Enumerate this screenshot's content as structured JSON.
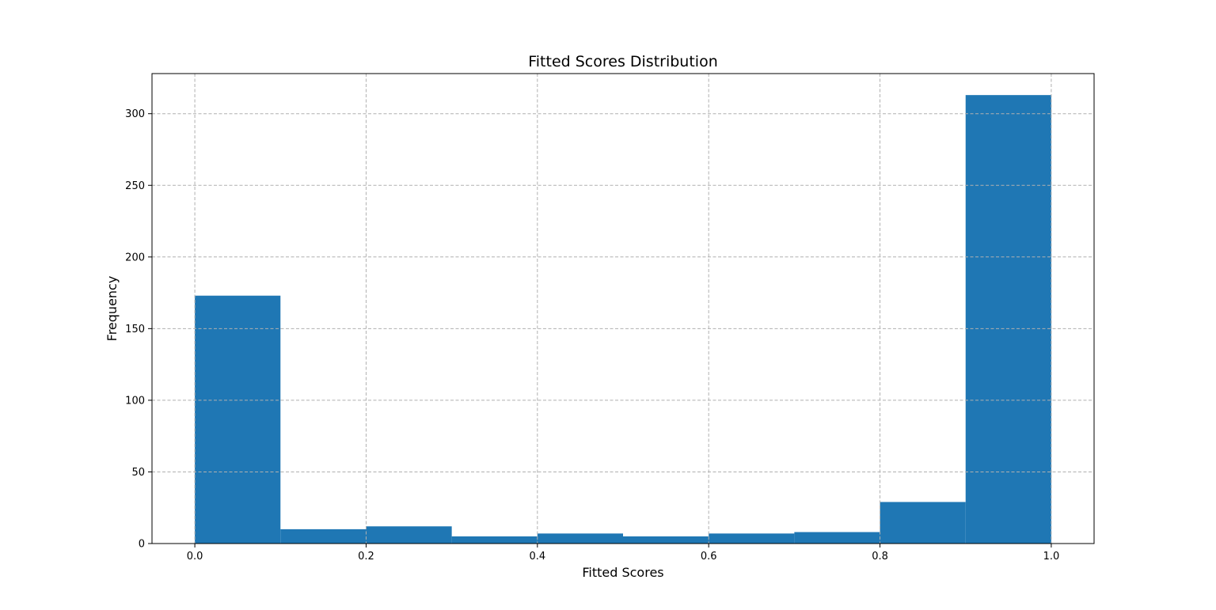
{
  "chart_data": {
    "type": "bar",
    "title": "Fitted Scores Distribution",
    "xlabel": "Fitted Scores",
    "ylabel": "Frequency",
    "bin_edges": [
      0.0,
      0.1,
      0.2,
      0.3,
      0.4,
      0.5,
      0.6,
      0.7,
      0.8,
      0.9,
      1.0
    ],
    "values": [
      173,
      10,
      12,
      5,
      7,
      5,
      7,
      8,
      29,
      313
    ],
    "xlim": [
      -0.05,
      1.05
    ],
    "ylim": [
      0,
      328
    ],
    "xticks": [
      0.0,
      0.2,
      0.4,
      0.6,
      0.8,
      1.0
    ],
    "xtick_labels": [
      "0.0",
      "0.2",
      "0.4",
      "0.6",
      "0.8",
      "1.0"
    ],
    "yticks": [
      0,
      50,
      100,
      150,
      200,
      250,
      300
    ],
    "ytick_labels": [
      "0",
      "50",
      "100",
      "150",
      "200",
      "250",
      "300"
    ],
    "grid": true,
    "bar_color": "#1f77b4",
    "grid_color": "#b0b0b0"
  }
}
